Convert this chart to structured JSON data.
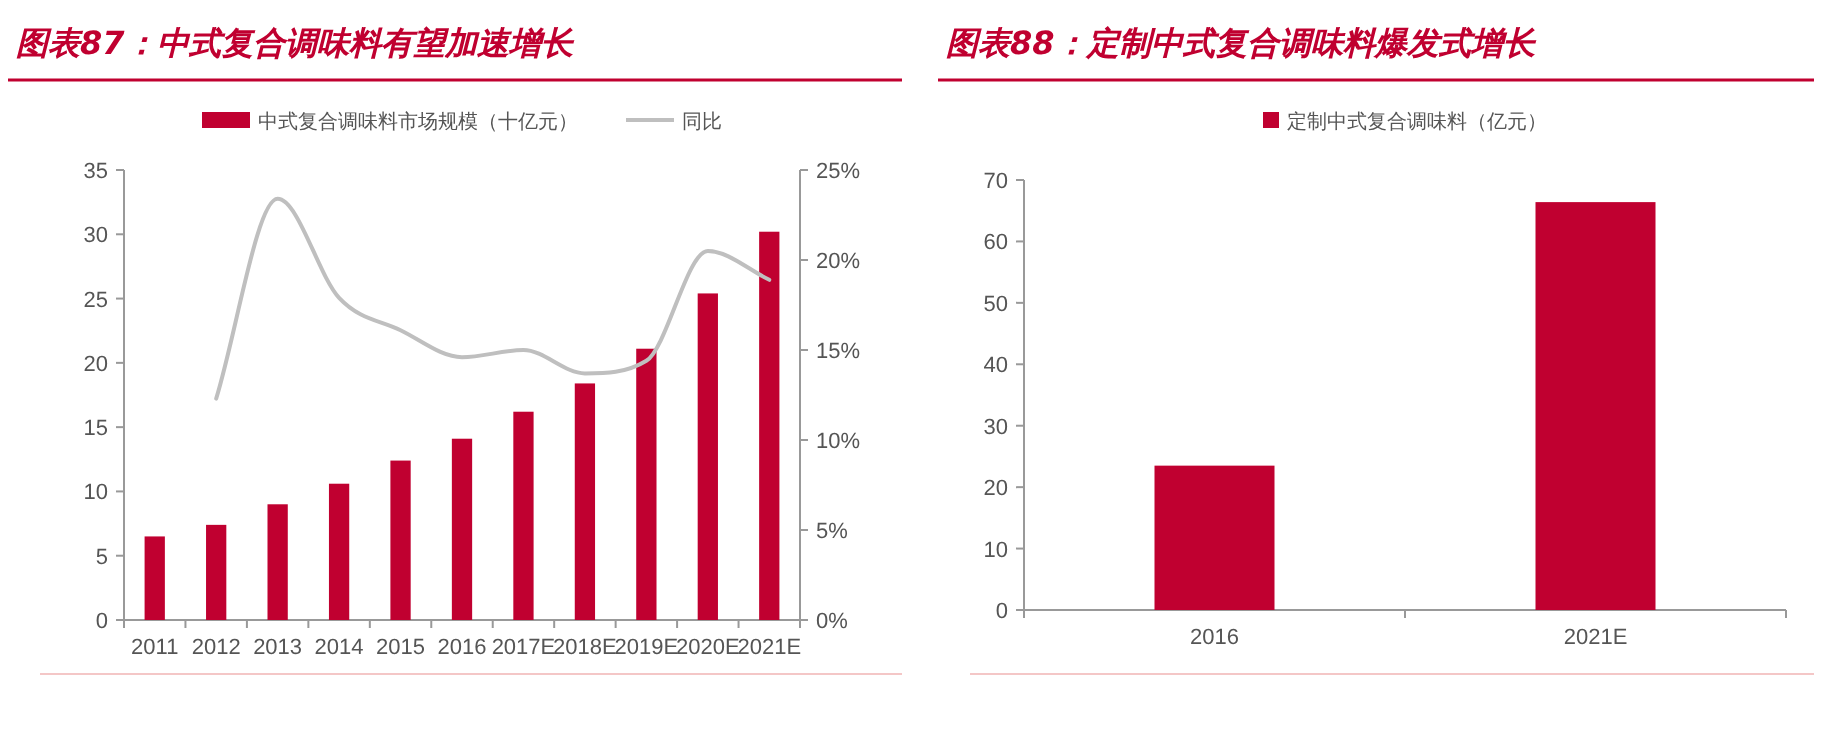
{
  "chart_data": [
    {
      "type": "bar",
      "title": "图表87：中式复合调味料有望加速增长",
      "legend": "top",
      "categories": [
        "2011",
        "2012",
        "2013",
        "2014",
        "2015",
        "2016",
        "2017E",
        "2018E",
        "2019E",
        "2020E",
        "2021E"
      ],
      "series": [
        {
          "name": "中式复合调味料市场规模（十亿元）",
          "color": "#c00030",
          "values": [
            6.5,
            7.4,
            9.0,
            10.6,
            12.4,
            14.1,
            16.2,
            18.4,
            21.1,
            25.4,
            30.2
          ]
        },
        {
          "name": "同比",
          "type": "line",
          "axis": "y2",
          "color": "#bfbfbf",
          "values": [
            null,
            12.3,
            23.4,
            17.9,
            16.1,
            14.6,
            15.0,
            13.7,
            14.4,
            20.5,
            18.9
          ]
        }
      ],
      "ylim": [
        0,
        35
      ],
      "yticks": [
        0,
        5,
        10,
        15,
        20,
        25,
        30,
        35
      ],
      "y2lim": [
        0,
        25
      ],
      "y2ticks": [
        {
          "value": 0,
          "label": "0%"
        },
        {
          "value": 5,
          "label": "5%"
        },
        {
          "value": 10,
          "label": "10%"
        },
        {
          "value": 15,
          "label": "15%"
        },
        {
          "value": 20,
          "label": "20%"
        },
        {
          "value": 25,
          "label": "25%"
        }
      ]
    },
    {
      "type": "bar",
      "title": "图表88：定制中式复合调味料爆发式增长",
      "legend": "top",
      "categories": [
        "2016",
        "2021E"
      ],
      "series": [
        {
          "name": "定制中式复合调味料（亿元）",
          "color": "#c00030",
          "values": [
            23.5,
            66.4
          ]
        }
      ],
      "ylim": [
        0,
        70
      ],
      "yticks": [
        0,
        10,
        20,
        30,
        40,
        50,
        60,
        70
      ]
    }
  ]
}
